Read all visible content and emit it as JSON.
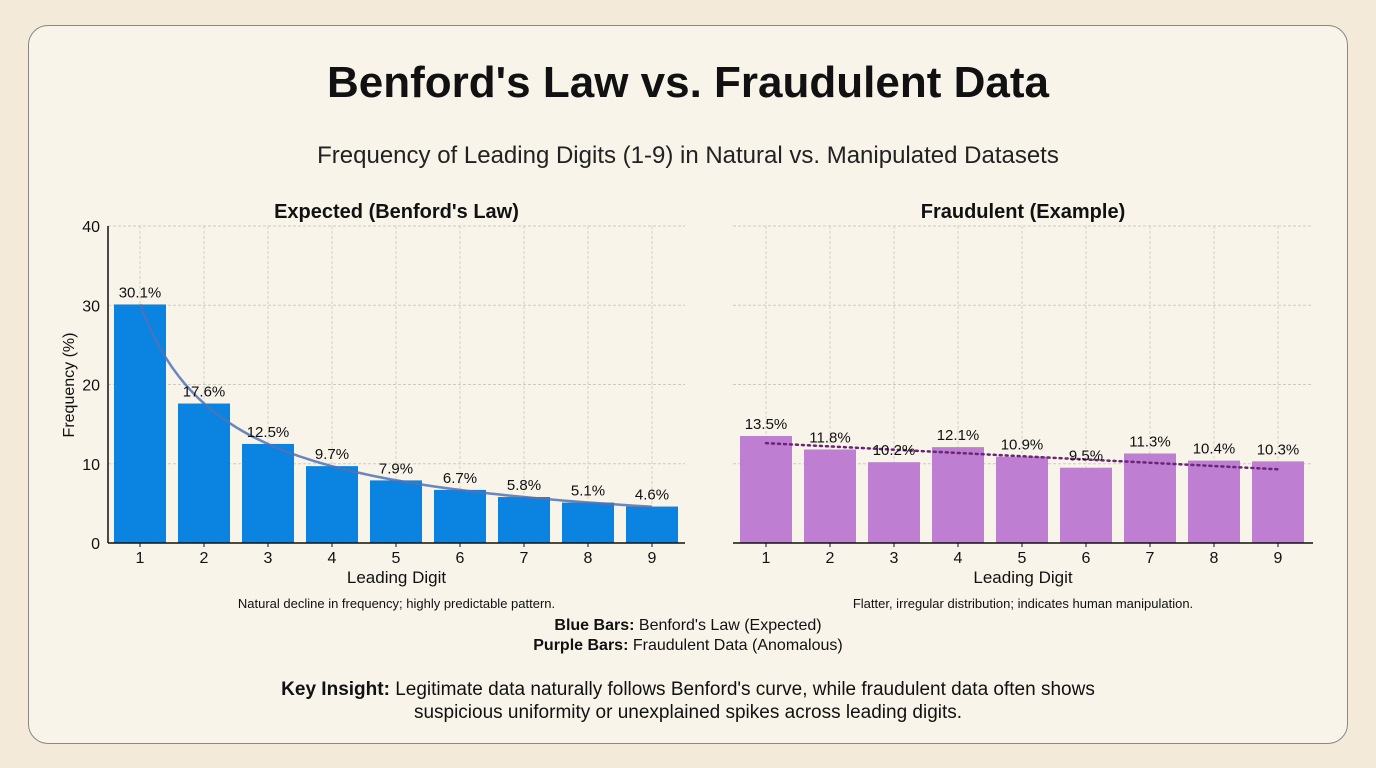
{
  "title": "Benford's Law vs. Fraudulent Data",
  "subtitle": "Frequency of Leading Digits (1-9) in Natural vs. Manipulated Datasets",
  "legend": {
    "blue_label": "Blue Bars:",
    "blue_text": "Benford's Law (Expected)",
    "purple_label": "Purple Bars:",
    "purple_text": "Fraudulent Data (Anomalous)"
  },
  "insight": {
    "label": "Key Insight:",
    "line1": "Legitimate data naturally follows Benford's curve, while fraudulent data often shows",
    "line2": "suspicious uniformity or unexplained spikes across leading digits."
  },
  "chart_data": [
    {
      "type": "bar",
      "title": "Expected (Benford's Law)",
      "xlabel": "Leading Digit",
      "ylabel": "Frequency (%)",
      "caption": "Natural decline in frequency; highly predictable pattern.",
      "categories": [
        "1",
        "2",
        "3",
        "4",
        "5",
        "6",
        "7",
        "8",
        "9"
      ],
      "values": [
        30.1,
        17.6,
        12.5,
        9.7,
        7.9,
        6.7,
        5.8,
        5.1,
        4.6
      ],
      "data_labels": [
        "30.1%",
        "17.6%",
        "12.5%",
        "9.7%",
        "7.9%",
        "6.7%",
        "5.8%",
        "5.1%",
        "4.6%"
      ],
      "ylim": [
        0,
        40
      ],
      "yticks": [
        "0",
        "10",
        "20",
        "30",
        "40"
      ],
      "grid": true,
      "color": "#0a84e0",
      "overlay": {
        "style": "smooth curve",
        "color": "#4f72b8"
      }
    },
    {
      "type": "bar",
      "title": "Fraudulent (Example)",
      "xlabel": "Leading Digit",
      "caption": "Flatter, irregular distribution; indicates human manipulation.",
      "categories": [
        "1",
        "2",
        "3",
        "4",
        "5",
        "6",
        "7",
        "8",
        "9"
      ],
      "values": [
        13.5,
        11.8,
        10.2,
        12.1,
        10.9,
        9.5,
        11.3,
        10.4,
        10.3
      ],
      "data_labels": [
        "13.5%",
        "11.8%",
        "10.2%",
        "12.1%",
        "10.9%",
        "9.5%",
        "11.3%",
        "10.4%",
        "10.3%"
      ],
      "ylim": [
        0,
        40
      ],
      "grid": true,
      "color": "#be7fd2",
      "overlay": {
        "style": "dotted trend line",
        "color": "#6a2478",
        "values": [
          12.6,
          9.3
        ]
      }
    }
  ]
}
